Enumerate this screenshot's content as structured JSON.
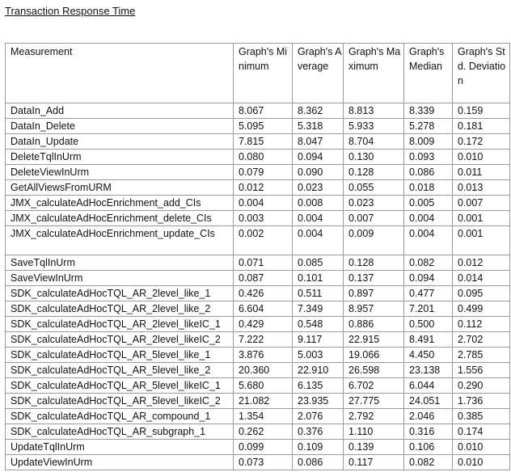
{
  "title": "Transaction Response Time",
  "table": {
    "headers": [
      "Measurement",
      "Graph's Minimum",
      "Graph's Average",
      "Graph's Maximum",
      "Graph's Median",
      "Graph's Std. Deviation"
    ],
    "rows": [
      [
        "DataIn_Add",
        "8.067",
        "8.362",
        "8.813",
        "8.339",
        "0.159"
      ],
      [
        "DataIn_Delete",
        "5.095",
        "5.318",
        "5.933",
        "5.278",
        "0.181"
      ],
      [
        "DataIn_Update",
        "7.815",
        "8.047",
        "8.704",
        "8.009",
        "0.172"
      ],
      [
        "DeleteTqlInUrm",
        "0.080",
        "0.094",
        "0.130",
        "0.093",
        "0.010"
      ],
      [
        "DeleteViewInUrm",
        "0.079",
        "0.090",
        "0.128",
        "0.086",
        "0.011"
      ],
      [
        "GetAllViewsFromURM",
        "0.012",
        "0.023",
        "0.055",
        "0.018",
        "0.013"
      ],
      [
        "JMX_calculateAdHocEnrichment_add_CIs",
        "0.004",
        "0.008",
        "0.023",
        "0.005",
        "0.007"
      ],
      [
        "JMX_calculateAdHocEnrichment_delete_CIs",
        "0.003",
        "0.004",
        "0.007",
        "0.004",
        "0.001"
      ],
      [
        "JMX_calculateAdHocEnrichment_update_CIs",
        "0.002",
        "0.004",
        "0.009",
        "0.004",
        "0.001"
      ],
      [
        "SaveTqlInUrm",
        "0.071",
        "0.085",
        "0.128",
        "0.082",
        "0.012"
      ],
      [
        "SaveViewInUrm",
        "0.087",
        "0.101",
        "0.137",
        "0.094",
        "0.014"
      ],
      [
        "SDK_calculateAdHocTQL_AR_2level_like_1",
        "0.426",
        "0.511",
        "0.897",
        "0.477",
        "0.095"
      ],
      [
        "SDK_calculateAdHocTQL_AR_2level_like_2",
        "6.604",
        "7.349",
        "8.957",
        "7.201",
        "0.499"
      ],
      [
        "SDK_calculateAdHocTQL_AR_2level_likeIC_1",
        "0.429",
        "0.548",
        "0.886",
        "0.500",
        "0.112"
      ],
      [
        "SDK_calculateAdHocTQL_AR_2level_likeIC_2",
        "7.222",
        "9.117",
        "22.915",
        "8.491",
        "2.702"
      ],
      [
        "SDK_calculateAdHocTQL_AR_5level_like_1",
        "3.876",
        "5.003",
        "19.066",
        "4.450",
        "2.785"
      ],
      [
        "SDK_calculateAdHocTQL_AR_5level_like_2",
        "20.360",
        "22.910",
        "26.598",
        "23.138",
        "1.556"
      ],
      [
        "SDK_calculateAdHocTQL_AR_5level_likeIC_1",
        "5.680",
        "6.135",
        "6.702",
        "6.044",
        "0.290"
      ],
      [
        "SDK_calculateAdHocTQL_AR_5level_likeIC_2",
        "21.082",
        "23.935",
        "27.775",
        "24.051",
        "1.736"
      ],
      [
        "SDK_calculateAdHocTQL_AR_compound_1",
        "1.354",
        "2.076",
        "2.792",
        "2.046",
        "0.385"
      ],
      [
        "SDK_calculateAdHocTQL_AR_subgraph_1",
        "0.262",
        "0.376",
        "1.110",
        "0.316",
        "0.174"
      ],
      [
        "UpdateTqlInUrm",
        "0.099",
        "0.109",
        "0.139",
        "0.106",
        "0.010"
      ],
      [
        "UpdateViewInUrm",
        "0.073",
        "0.086",
        "0.117",
        "0.082",
        "0.010"
      ]
    ]
  }
}
